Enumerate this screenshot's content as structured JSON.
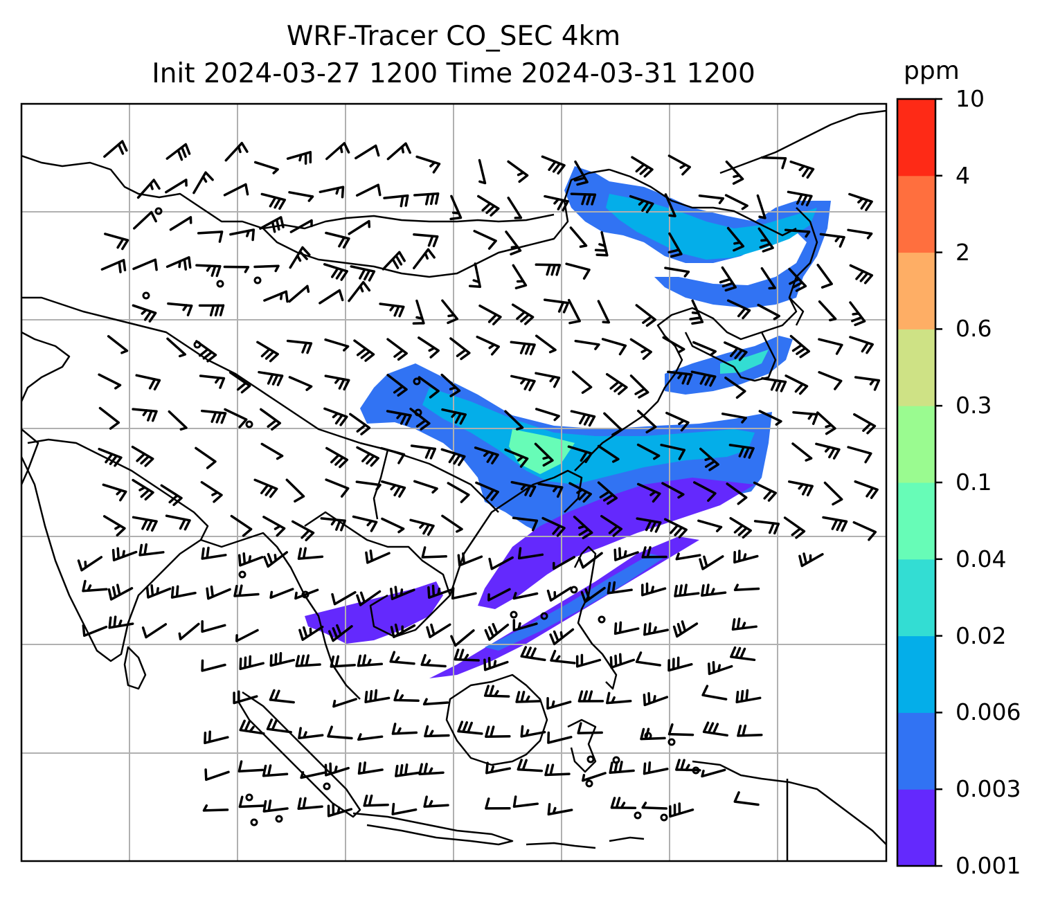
{
  "title": {
    "line1": "WRF-Tracer CO_SEC 4km",
    "line2": "Init 2024-03-27 1200 Time 2024-03-31 1200"
  },
  "colorbar": {
    "unit": "ppm",
    "levels": [
      "0.001",
      "0.003",
      "0.006",
      "0.02",
      "0.04",
      "0.1",
      "0.3",
      "0.6",
      "2",
      "4",
      "10"
    ],
    "colors": [
      "#6429fd",
      "#3173f3",
      "#04aee9",
      "#33ddd3",
      "#67fcb7",
      "#9afb90",
      "#cee285",
      "#feae65",
      "#ff6f3e",
      "#fe2a16"
    ]
  },
  "map": {
    "graticule": "on",
    "wind_barbs": "on",
    "coastlines": "on"
  }
}
